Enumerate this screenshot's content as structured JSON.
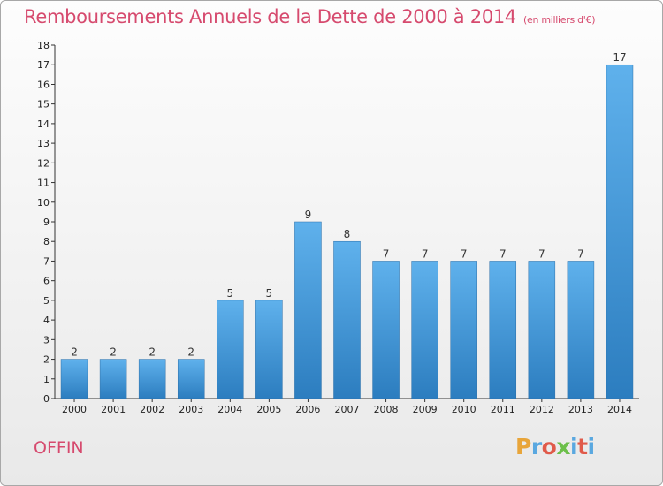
{
  "header": {
    "title": "Remboursements Annuels de la Dette de 2000 à 2014",
    "unit": "(en milliers d'€)"
  },
  "footer": {
    "commune": "OFFIN",
    "logo": "Proxiti"
  },
  "colors": {
    "title": "#d64a6e",
    "bar_top": "#5fb1ec",
    "bar_bottom": "#2c7dbf",
    "logo_letters": [
      "#e8a53a",
      "#5aa8e0",
      "#e05a4a",
      "#6cbf4a",
      "#5aa8e0",
      "#e05a4a",
      "#5aa8e0"
    ]
  },
  "chart_data": {
    "type": "bar",
    "categories": [
      "2000",
      "2001",
      "2002",
      "2003",
      "2004",
      "2005",
      "2006",
      "2007",
      "2008",
      "2009",
      "2010",
      "2011",
      "2012",
      "2013",
      "2014"
    ],
    "values": [
      2,
      2,
      2,
      2,
      5,
      5,
      9,
      8,
      7,
      7,
      7,
      7,
      7,
      7,
      17
    ],
    "data_labels": [
      "2",
      "2",
      "2",
      "2",
      "5",
      "5",
      "9",
      "8",
      "7",
      "7",
      "7",
      "7",
      "7",
      "7",
      "17"
    ],
    "y_ticks": [
      "0",
      "1",
      "2",
      "3",
      "4",
      "5",
      "6",
      "7",
      "8",
      "9",
      "10",
      "11",
      "12",
      "13",
      "14",
      "15",
      "16",
      "17",
      "18"
    ],
    "ylim": [
      0,
      18
    ],
    "grid": false,
    "legend": "none"
  }
}
